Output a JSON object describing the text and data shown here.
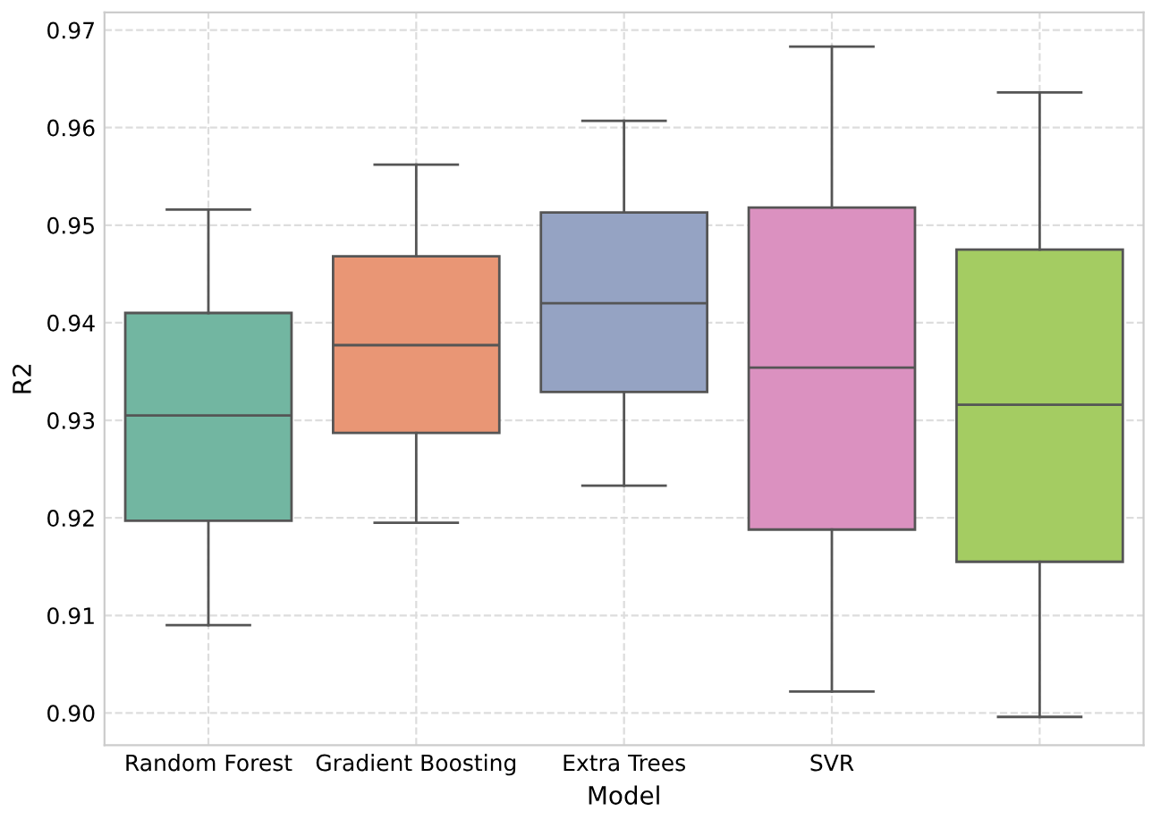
{
  "chart_data": {
    "type": "box",
    "xlabel": "Model",
    "ylabel": "R2",
    "categories": [
      "Random Forest",
      "Gradient Boosting",
      "Extra Trees",
      "SVR",
      null
    ],
    "colors": [
      "#72b6a1",
      "#e99675",
      "#95a3c3",
      "#db91c0",
      "#a4cc62"
    ],
    "boxes": [
      {
        "low": 0.909,
        "q1": 0.9197,
        "median": 0.9305,
        "q3": 0.941,
        "high": 0.9516
      },
      {
        "low": 0.9195,
        "q1": 0.9287,
        "median": 0.9377,
        "q3": 0.9468,
        "high": 0.9562
      },
      {
        "low": 0.9233,
        "q1": 0.9329,
        "median": 0.942,
        "q3": 0.9513,
        "high": 0.9607
      },
      {
        "low": 0.9022,
        "q1": 0.9188,
        "median": 0.9354,
        "q3": 0.9518,
        "high": 0.9683
      },
      {
        "low": 0.8996,
        "q1": 0.9155,
        "median": 0.9316,
        "q3": 0.9475,
        "high": 0.9636
      }
    ],
    "ylim": [
      0.8967,
      0.9718
    ],
    "yticks": [
      {
        "value": 0.9,
        "label": "0.90"
      },
      {
        "value": 0.91,
        "label": "0.91"
      },
      {
        "value": 0.92,
        "label": "0.92"
      },
      {
        "value": 0.93,
        "label": "0.93"
      },
      {
        "value": 0.94,
        "label": "0.94"
      },
      {
        "value": 0.95,
        "label": "0.95"
      },
      {
        "value": 0.96,
        "label": "0.96"
      },
      {
        "value": 0.97,
        "label": "0.97"
      }
    ],
    "grid": true
  }
}
